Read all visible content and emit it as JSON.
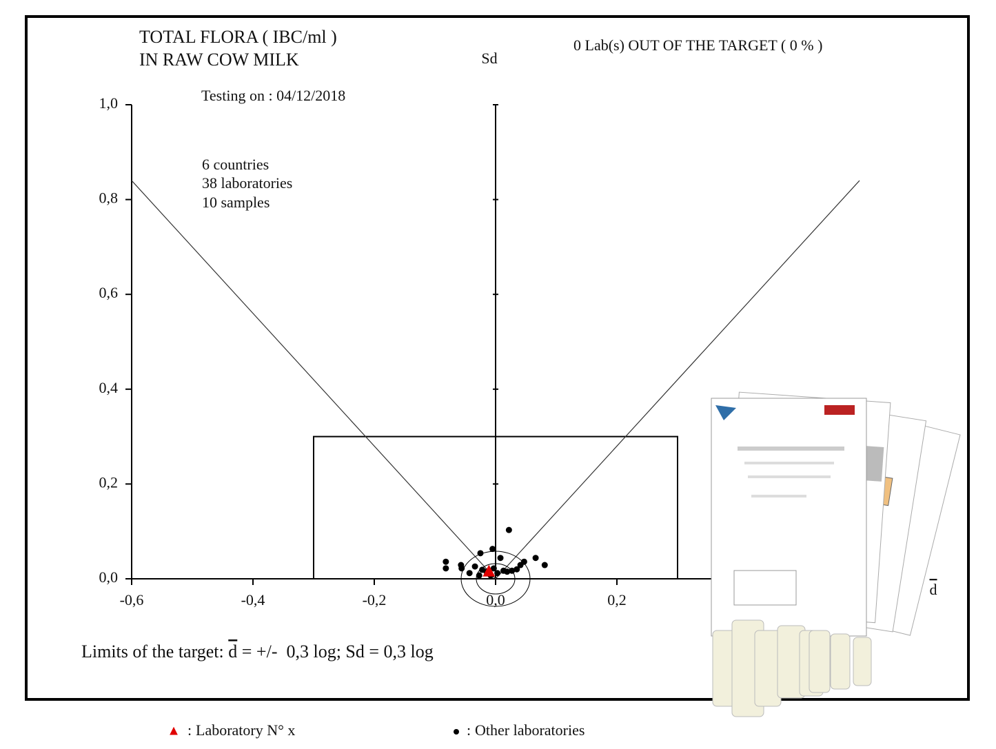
{
  "chart_data": {
    "type": "scatter",
    "title": [
      "TOTAL FLORA ( IBC/ml )",
      "IN RAW COW MILK"
    ],
    "subtitle": "Testing on : 04/12/2018",
    "annotation_top": "0 Lab(s) OUT OF THE TARGET ( 0 % )",
    "annotations": [
      "6 countries",
      "38 laboratories",
      "10 samples"
    ],
    "xlabel": "d",
    "ylabel": "Sd",
    "limits_text": [
      "Limits of the target: ",
      "d",
      " = +/-  0,3 log; Sd = 0,3 log"
    ],
    "legend_separator": ":",
    "xlim": [
      -0.6,
      0.6
    ],
    "ylim": [
      0,
      1.0
    ],
    "xticks": [
      {
        "value": -0.6,
        "label": "-0,6"
      },
      {
        "value": -0.4,
        "label": "-0,4"
      },
      {
        "value": -0.2,
        "label": "-0,2"
      },
      {
        "value": 0,
        "label": "0,0"
      },
      {
        "value": 0.2,
        "label": "0,2"
      }
    ],
    "yticks": [
      {
        "value": 0,
        "label": "0,0"
      },
      {
        "value": 0.2,
        "label": "0,2"
      },
      {
        "value": 0.4,
        "label": "0,4"
      },
      {
        "value": 0.6,
        "label": "0,6"
      },
      {
        "value": 0.8,
        "label": "0,8"
      },
      {
        "value": 1.0,
        "label": "1,0"
      }
    ],
    "target_box": {
      "x": [
        -0.3,
        0.3
      ],
      "values": [
        0,
        0.3
      ]
    },
    "target_lines": {
      "x": [
        -0.6,
        0,
        0.6
      ],
      "values": [
        0.84,
        0,
        0.84
      ]
    },
    "series": [
      {
        "name": "Laboratory N° x",
        "color": "#e00000",
        "marker": "triangle",
        "x": [
          -0.011
        ],
        "values": [
          0.015
        ]
      },
      {
        "name": "Other laboratories",
        "color": "#000000",
        "marker": "circle",
        "x": [
          0.022,
          -0.005,
          -0.025,
          -0.082,
          -0.082,
          -0.057,
          -0.056,
          -0.034,
          -0.043,
          -0.022,
          -0.003,
          0.008,
          0.013,
          0.019,
          0.027,
          0.035,
          0.041,
          0.047,
          0.066,
          0.081,
          -0.015,
          -0.008,
          0.003,
          -0.027
        ],
        "values": [
          0.103,
          0.063,
          0.054,
          0.036,
          0.022,
          0.029,
          0.022,
          0.026,
          0.012,
          0.019,
          0.022,
          0.044,
          0.017,
          0.015,
          0.017,
          0.02,
          0.029,
          0.036,
          0.044,
          0.029,
          0.015,
          0.007,
          0.012,
          0.007
        ]
      }
    ]
  }
}
